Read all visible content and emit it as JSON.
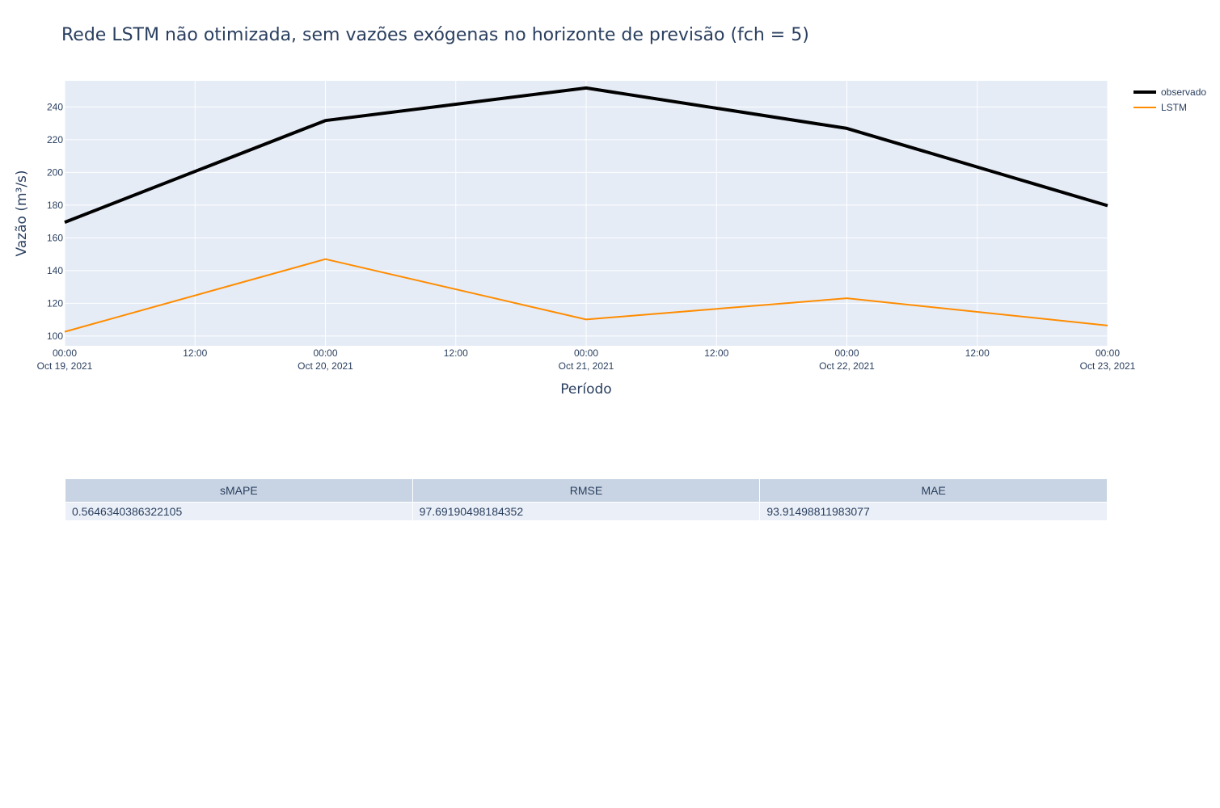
{
  "chart_data": {
    "type": "line",
    "title": "Rede LSTM não otimizada, sem vazões exógenas no horizonte de previsão (fch = 5)",
    "xlabel": "Período",
    "ylabel": "Vazão (m³/s)",
    "x": [
      "2021-10-19 00:00",
      "2021-10-20 00:00",
      "2021-10-21 00:00",
      "2021-10-22 00:00",
      "2021-10-23 00:00"
    ],
    "xlim": [
      "2021-10-19 00:00",
      "2021-10-23 00:00"
    ],
    "ylim": [
      94,
      256
    ],
    "yticks": [
      100,
      120,
      140,
      160,
      180,
      200,
      220,
      240
    ],
    "xticks": [
      {
        "line1": "00:00",
        "line2": "Oct 19, 2021"
      },
      {
        "line1": "12:00",
        "line2": ""
      },
      {
        "line1": "00:00",
        "line2": "Oct 20, 2021"
      },
      {
        "line1": "12:00",
        "line2": ""
      },
      {
        "line1": "00:00",
        "line2": "Oct 21, 2021"
      },
      {
        "line1": "12:00",
        "line2": ""
      },
      {
        "line1": "00:00",
        "line2": "Oct 22, 2021"
      },
      {
        "line1": "12:00",
        "line2": ""
      },
      {
        "line1": "00:00",
        "line2": "Oct 23, 2021"
      }
    ],
    "grid": true,
    "legend_position": "top-right",
    "series": [
      {
        "name": "observado",
        "color": "#000000",
        "values": [
          169.5,
          231.7,
          251.6,
          226.9,
          179.7
        ]
      },
      {
        "name": "LSTM",
        "color": "#ff8c00",
        "values": [
          102.6,
          147.0,
          110.1,
          123.1,
          106.4
        ]
      }
    ]
  },
  "metrics_table": {
    "headers": [
      "sMAPE",
      "RMSE",
      "MAE"
    ],
    "values": [
      "0.5646340386322105",
      "97.69190498184352",
      "93.91498811983077"
    ]
  }
}
